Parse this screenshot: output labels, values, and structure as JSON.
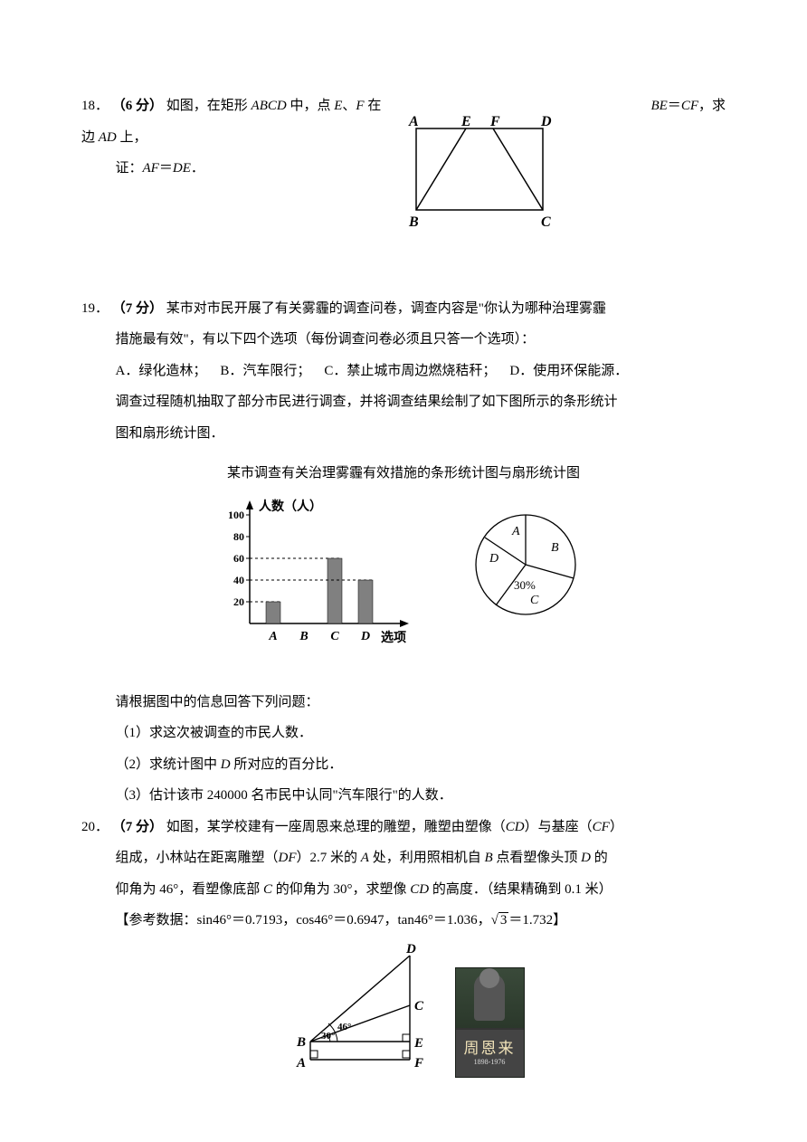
{
  "q18": {
    "number": "18．",
    "points": "（6 分）",
    "text_a": "如图，在矩形 ",
    "abcd": "ABCD",
    "text_b": " 中，点 ",
    "E": "E",
    "text_c": "、",
    "F": "F",
    "text_d": " 在边 ",
    "AD": "AD",
    "text_e": " 上，",
    "BE": "BE",
    "eq": "＝",
    "CF": "CF",
    "text_f": "，求",
    "line2_a": "证：",
    "AF": "AF",
    "DE": "DE",
    "period": "．",
    "labels": {
      "A": "A",
      "E": "E",
      "F": "F",
      "D": "D",
      "B": "B",
      "C": "C"
    }
  },
  "q19": {
    "number": "19．",
    "points": "（7 分）",
    "line1": "某市对市民开展了有关雾霾的调查问卷，调查内容是\"你认为哪种治理雾霾",
    "line2": "措施最有效\"，有以下四个选项（每份调查问卷必须且只答一个选项）：",
    "optA": "A．绿化造林；",
    "optB": "B．汽车限行；",
    "optC": "C．禁止城市周边燃烧秸秆；",
    "optD": "D．使用环保能源．",
    "line3": "调查过程随机抽取了部分市民进行调查，并将调查结果绘制了如下图所示的条形统计",
    "line4": "图和扇形统计图．",
    "chart_title": "某市调查有关治理雾霾有效措施的条形统计图与扇形统计图",
    "bar": {
      "ylabel": "人数（人）",
      "yticks": [
        "20",
        "40",
        "60",
        "80",
        "100"
      ],
      "yvalues": [
        20,
        40,
        60,
        80,
        100
      ],
      "categories": [
        "A",
        "B",
        "C",
        "D"
      ],
      "values": [
        20,
        null,
        60,
        40
      ],
      "xlabel": "选项",
      "bar_color": "#808080",
      "axis_color": "#000000"
    },
    "pie": {
      "labels": {
        "A": "A",
        "B": "B",
        "C": "C",
        "D": "D"
      },
      "c_pct": "30%"
    },
    "after1": "请根据图中的信息回答下列问题：",
    "sub1": "（1）求这次被调查的市民人数．",
    "sub2_a": "（2）求统计图中 ",
    "sub2_D": "D",
    "sub2_b": " 所对应的百分比．",
    "sub3": "（3）估计该市 240000 名市民中认同\"汽车限行\"的人数．"
  },
  "q20": {
    "number": "20．",
    "points": "（7 分）",
    "l1a": "如图，某学校建有一座周恩来总理的雕塑，雕塑由塑像（",
    "CD": "CD",
    "l1b": "）与基座（",
    "CF": "CF",
    "l1c": "）",
    "l2a": "组成，小林站在距离雕塑（",
    "DF": "DF",
    "l2b": "）2.7 米的 ",
    "Apt": "A",
    "l2c": " 处，利用照相机自 ",
    "Bpt": "B",
    "l2d": " 点看塑像头顶 ",
    "Dpt": "D",
    "l2e": " 的",
    "l3a": "仰角为 46°，看塑像底部 ",
    "Cpt": "C",
    "l3b": " 的仰角为 30°，求塑像 ",
    "l3c": " 的高度．（结果精确到 0.1 米）",
    "ref_a": "【参考数据：sin46°＝0.7193，cos46°＝0.6947，tan46°＝1.036，",
    "sqrt3": "3",
    "ref_val": "＝1.732",
    "ref_b": "】",
    "labels": {
      "A": "A",
      "B": "B",
      "C": "C",
      "D": "D",
      "E": "E",
      "F": "F",
      "ang30": "30°",
      "ang46": "46°"
    },
    "plaque": {
      "name": "周恩来",
      "years": "1898-1976"
    }
  }
}
